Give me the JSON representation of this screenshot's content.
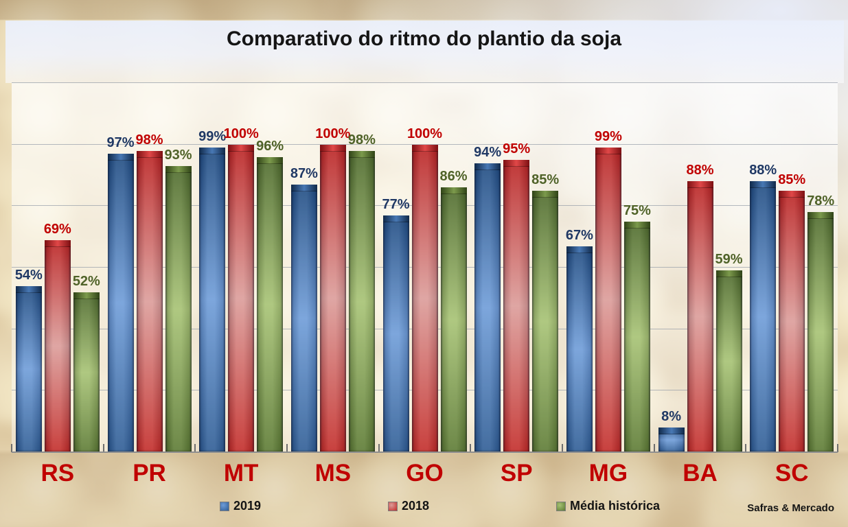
{
  "chart_data": {
    "type": "bar",
    "title": "Comparativo do ritmo do plantio da soja",
    "source": "Safras & Mercado",
    "categories": [
      "RS",
      "PR",
      "MT",
      "MS",
      "GO",
      "SP",
      "MG",
      "BA",
      "SC"
    ],
    "series": [
      {
        "name": "2019",
        "values": [
          54,
          97,
          99,
          87,
          77,
          94,
          67,
          8,
          88
        ],
        "label_color": "#1F3864",
        "gradient": {
          "top": "#1E4A80",
          "mid": "#6E9CD8",
          "bottom": "#2E5C94",
          "edge": "#10294A",
          "cap_highlight": "#4878B4"
        }
      },
      {
        "name": "2018",
        "values": [
          69,
          98,
          100,
          100,
          100,
          95,
          99,
          88,
          85
        ],
        "label_color": "#C00000",
        "gradient": {
          "top": "#B92020",
          "mid": "#DB9C99",
          "bottom": "#C22B28",
          "edge": "#7C0F12",
          "cap_highlight": "#E14848"
        }
      },
      {
        "name": "Média histórica",
        "values": [
          52,
          93,
          96,
          98,
          86,
          85,
          75,
          59,
          78
        ],
        "label_color": "#4F6228",
        "gradient": {
          "top": "#4C682A",
          "mid": "#A6C273",
          "bottom": "#5C7A33",
          "edge": "#2F4316",
          "cap_highlight": "#7C9A4C"
        }
      }
    ],
    "value_suffix": "%",
    "ylim": [
      0,
      120
    ],
    "gridline_step": 20,
    "grid": true,
    "legend_position": "bottom",
    "category_label_color": "#C00000"
  }
}
